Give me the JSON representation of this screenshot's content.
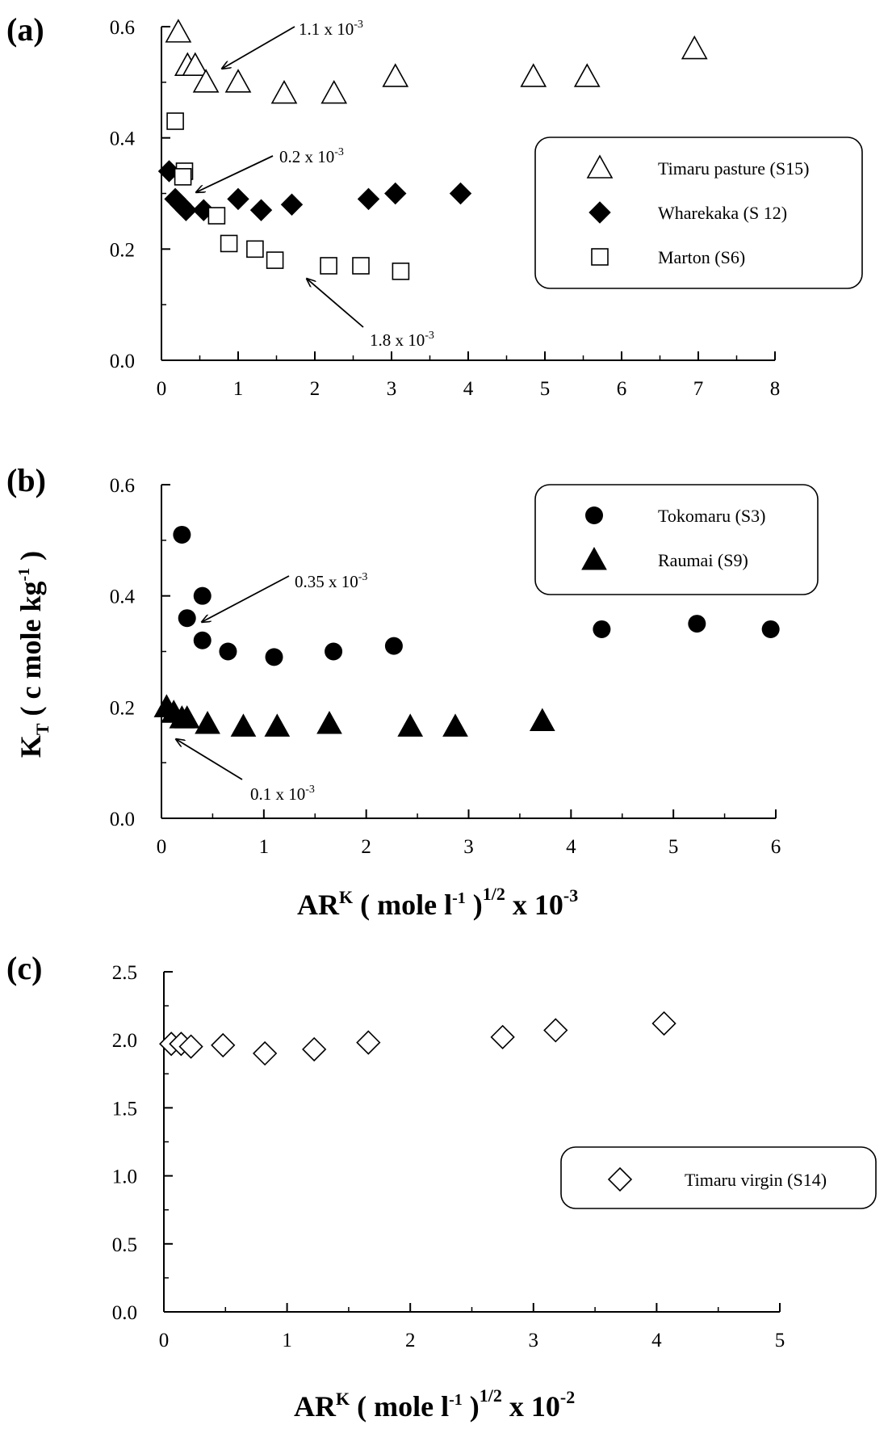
{
  "chart_data": [
    {
      "panel": "(a)",
      "type": "scatter",
      "xlabel": "",
      "ylabel": "",
      "xlim": [
        0,
        8
      ],
      "ylim": [
        0,
        0.6
      ],
      "xticks": [
        "0",
        "1",
        "2",
        "3",
        "4",
        "5",
        "6",
        "7",
        "8"
      ],
      "yticks": [
        "0.0",
        "0.2",
        "0.4",
        "0.6"
      ],
      "legend_position": "right",
      "series": [
        {
          "name": "Timaru pasture (S15)",
          "marker": "triangle-open",
          "points": [
            [
              0.22,
              0.59
            ],
            [
              0.34,
              0.53
            ],
            [
              0.44,
              0.53
            ],
            [
              0.58,
              0.5
            ],
            [
              1.0,
              0.5
            ],
            [
              1.6,
              0.48
            ],
            [
              2.25,
              0.48
            ],
            [
              3.05,
              0.51
            ],
            [
              4.85,
              0.51
            ],
            [
              5.55,
              0.51
            ],
            [
              6.95,
              0.56
            ]
          ]
        },
        {
          "name": "Wharekaka (S 12)",
          "marker": "diamond-filled",
          "points": [
            [
              0.1,
              0.34
            ],
            [
              0.18,
              0.29
            ],
            [
              0.25,
              0.28
            ],
            [
              0.32,
              0.27
            ],
            [
              0.55,
              0.27
            ],
            [
              1.0,
              0.29
            ],
            [
              1.3,
              0.27
            ],
            [
              1.7,
              0.28
            ],
            [
              2.7,
              0.29
            ],
            [
              3.05,
              0.3
            ],
            [
              3.9,
              0.3
            ]
          ]
        },
        {
          "name": "Marton (S6)",
          "marker": "square-open",
          "points": [
            [
              0.18,
              0.43
            ],
            [
              0.3,
              0.34
            ],
            [
              0.28,
              0.33
            ],
            [
              0.72,
              0.26
            ],
            [
              0.88,
              0.21
            ],
            [
              1.22,
              0.2
            ],
            [
              1.48,
              0.18
            ],
            [
              2.18,
              0.17
            ],
            [
              2.6,
              0.17
            ],
            [
              3.12,
              0.16
            ]
          ]
        }
      ],
      "annotations": [
        {
          "text_main": "1.1 x 10",
          "text_sup": "-3"
        },
        {
          "text_main": "0.2 x 10",
          "text_sup": "-3"
        },
        {
          "text_main": "1.8 x 10",
          "text_sup": "-3"
        }
      ]
    },
    {
      "panel": "(b)",
      "type": "scatter",
      "xlim": [
        0,
        6
      ],
      "ylim": [
        0,
        0.6
      ],
      "xticks": [
        "0",
        "1",
        "2",
        "3",
        "4",
        "5",
        "6"
      ],
      "yticks": [
        "0.0",
        "0.2",
        "0.4",
        "0.6"
      ],
      "legend_position": "top-right",
      "ylabel_main": "K",
      "ylabel_sub": "T",
      "ylabel_rest": " ( c mole kg",
      "ylabel_sup": "-1",
      "ylabel_close": " )",
      "xlabel_main": "AR",
      "xlabel_supK": "K",
      "xlabel_mid": " ( mole l",
      "xlabel_sup1": "-1",
      "xlabel_close": " )",
      "xlabel_sup2": "1/2",
      "xlabel_tail": " x 10",
      "xlabel_sup3": "-3",
      "series": [
        {
          "name": "Tokomaru (S3)",
          "marker": "circle-filled",
          "points": [
            [
              0.2,
              0.51
            ],
            [
              0.25,
              0.36
            ],
            [
              0.4,
              0.4
            ],
            [
              0.4,
              0.32
            ],
            [
              0.65,
              0.3
            ],
            [
              1.1,
              0.29
            ],
            [
              1.68,
              0.3
            ],
            [
              2.27,
              0.31
            ],
            [
              4.3,
              0.34
            ],
            [
              5.23,
              0.35
            ],
            [
              5.95,
              0.34
            ]
          ]
        },
        {
          "name": "Raumai (S9)",
          "marker": "triangle-filled",
          "points": [
            [
              0.05,
              0.2
            ],
            [
              0.12,
              0.19
            ],
            [
              0.2,
              0.18
            ],
            [
              0.25,
              0.18
            ],
            [
              0.45,
              0.17
            ],
            [
              0.8,
              0.165
            ],
            [
              1.13,
              0.165
            ],
            [
              1.64,
              0.17
            ],
            [
              2.43,
              0.165
            ],
            [
              2.87,
              0.165
            ],
            [
              3.72,
              0.175
            ]
          ]
        }
      ],
      "annotations": [
        {
          "text_main": "0.35 x 10",
          "text_sup": "-3"
        },
        {
          "text_main": "0.1 x 10",
          "text_sup": "-3"
        }
      ]
    },
    {
      "panel": "(c)",
      "type": "scatter",
      "xlim": [
        0,
        5
      ],
      "ylim": [
        0,
        2.5
      ],
      "xticks": [
        "0",
        "1",
        "2",
        "3",
        "4",
        "5"
      ],
      "yticks": [
        "0.0",
        "0.5",
        "1.0",
        "1.5",
        "2.0",
        "2.5"
      ],
      "legend_position": "right",
      "xlabel_main": "AR",
      "xlabel_supK": "K",
      "xlabel_mid": " ( mole l",
      "xlabel_sup1": "-1",
      "xlabel_close": " )",
      "xlabel_sup2": "1/2",
      "xlabel_tail": " x 10",
      "xlabel_sup3": "-2",
      "series": [
        {
          "name": "Timaru virgin (S14)",
          "marker": "diamond-open",
          "points": [
            [
              0.06,
              1.97
            ],
            [
              0.14,
              1.97
            ],
            [
              0.22,
              1.95
            ],
            [
              0.48,
              1.96
            ],
            [
              0.82,
              1.9
            ],
            [
              1.22,
              1.93
            ],
            [
              1.66,
              1.98
            ],
            [
              2.75,
              2.02
            ],
            [
              3.18,
              2.07
            ],
            [
              4.06,
              2.12
            ]
          ]
        }
      ]
    }
  ]
}
